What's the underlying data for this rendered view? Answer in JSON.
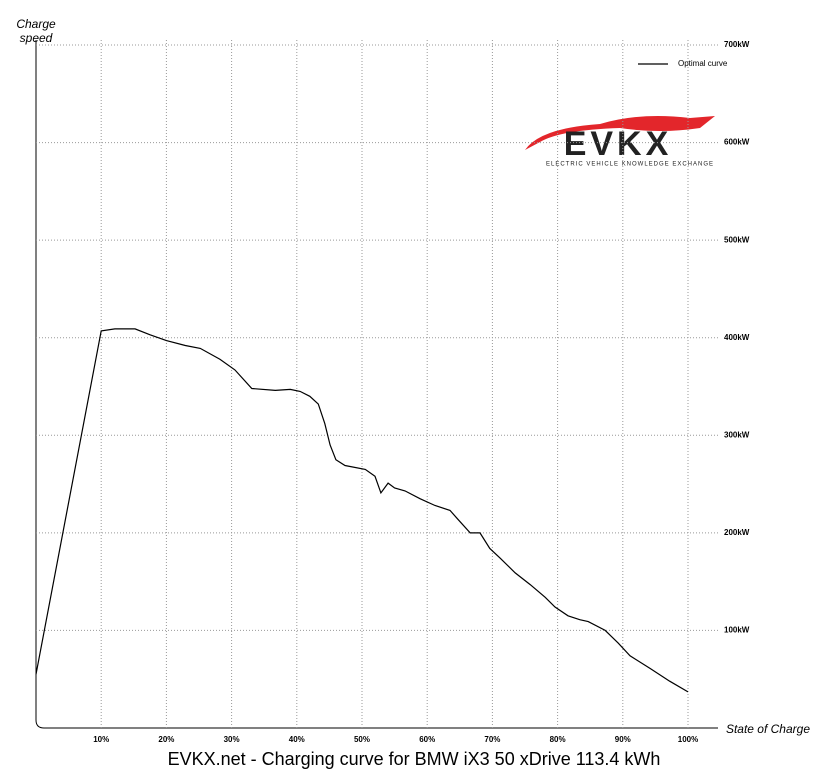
{
  "chart_data": {
    "type": "line",
    "title": "EVKX.net - Charging curve for BMW iX3 50 xDrive 113.4 kWh",
    "x_label": "State of Charge",
    "y_label": "Charge speed",
    "logo": {
      "name": "EVKX",
      "tagline": "ELECTRIC VEHICLE KNOWLEDGE EXCHANGE"
    },
    "legend_position": "upper right",
    "grid": true,
    "x": [
      0,
      10,
      12.1,
      15.2,
      17.5,
      20,
      22.9,
      25.2,
      28.2,
      30.5,
      33.1,
      36.7,
      39,
      40.5,
      42,
      43.3,
      44.3,
      45.1,
      46,
      47.4,
      50.5,
      52,
      52.9,
      54,
      55,
      56.6,
      58.9,
      61.2,
      63.5,
      64.7,
      66.6,
      68.1,
      69.6,
      71.2,
      73.5,
      75.8,
      78.1,
      79.6,
      81.6,
      83.4,
      84.7,
      87.3,
      89.3,
      91.1,
      94.2,
      97.2,
      100
    ],
    "series": [
      {
        "name": "Optimal curve",
        "color": "#000000",
        "values": [
          55,
          407,
          409,
          409,
          403,
          397,
          392,
          389,
          378,
          367,
          348,
          346,
          347,
          345,
          340,
          332,
          312,
          290,
          275,
          269,
          265,
          258,
          241,
          251,
          246,
          243,
          235,
          228,
          223,
          214,
          200,
          200,
          184,
          174,
          159,
          147,
          134,
          124,
          115,
          111,
          109,
          100,
          87,
          74,
          61,
          48,
          37
        ]
      }
    ],
    "xlim": [
      0,
      100
    ],
    "xticks": [
      {
        "value": 10,
        "label": "10%"
      },
      {
        "value": 20,
        "label": "20%"
      },
      {
        "value": 30,
        "label": "30%"
      },
      {
        "value": 40,
        "label": "40%"
      },
      {
        "value": 50,
        "label": "50%"
      },
      {
        "value": 60,
        "label": "60%"
      },
      {
        "value": 70,
        "label": "70%"
      },
      {
        "value": 80,
        "label": "80%"
      },
      {
        "value": 90,
        "label": "90%"
      },
      {
        "value": 100,
        "label": "100%"
      }
    ],
    "ylim": [
      0,
      700
    ],
    "yticks": [
      {
        "value": 100,
        "label": "100kW"
      },
      {
        "value": 200,
        "label": "200kW"
      },
      {
        "value": 300,
        "label": "300kW"
      },
      {
        "value": 400,
        "label": "400kW"
      },
      {
        "value": 500,
        "label": "500kW"
      },
      {
        "value": 600,
        "label": "600kW"
      },
      {
        "value": 700,
        "label": "700kW"
      }
    ]
  }
}
